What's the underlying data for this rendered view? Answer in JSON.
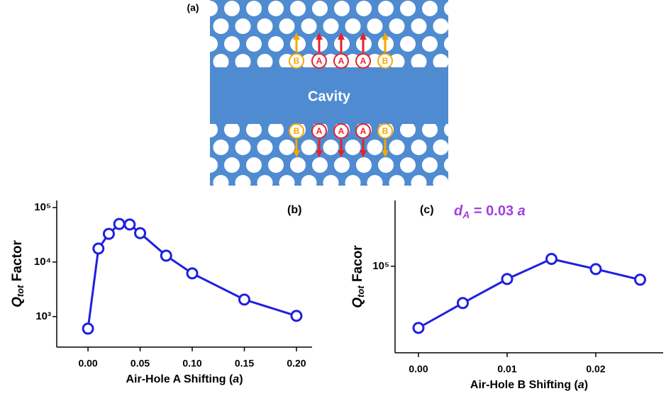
{
  "diagram": {
    "label": "(a)",
    "center": "Cavity",
    "top_row": [
      "B",
      "A",
      "A",
      "A",
      "B"
    ],
    "bottom_row": [
      "B",
      "A",
      "A",
      "A",
      "B"
    ]
  },
  "chart_data": [
    {
      "type": "line",
      "panel": "(b)",
      "xlabel": [
        "Air-Hole A Shifting (",
        "a",
        ")"
      ],
      "ylabel": [
        "Q",
        "tot",
        " Factor"
      ],
      "x": [
        0,
        0.01,
        0.02,
        0.03,
        0.04,
        0.05,
        0.075,
        0.1,
        0.15,
        0.2
      ],
      "series": [
        {
          "color": "#1f1fe0",
          "values": [
            600,
            17700,
            33000,
            50000,
            49000,
            34000,
            13100,
            6200,
            2050,
            1030
          ]
        }
      ],
      "xlim": [
        -0.03,
        0.215
      ],
      "ylim": [
        275,
        135000
      ],
      "log_y": true,
      "xticks": [
        {
          "value": 0,
          "label": "0.00"
        },
        {
          "value": 0.05,
          "label": "0.05"
        },
        {
          "value": 0.1,
          "label": "0.10"
        },
        {
          "value": 0.15,
          "label": "0.15"
        },
        {
          "value": 0.2,
          "label": "0.20"
        }
      ],
      "yticks": [
        {
          "value": 1000,
          "label": "10³"
        },
        {
          "value": 10000,
          "label": "10⁴"
        },
        {
          "value": 100000,
          "label": "10⁵"
        }
      ]
    },
    {
      "type": "line",
      "panel": "(c)",
      "xlabel": [
        "Air-Hole B Shifting (",
        "a",
        ")"
      ],
      "ylabel": [
        "Q",
        "tot",
        " Facor"
      ],
      "annotation": [
        "d",
        "A",
        " = 0.03 ",
        "a"
      ],
      "annotation_color": "#a040e0",
      "x": [
        0,
        0.005,
        0.01,
        0.015,
        0.02,
        0.025
      ],
      "series": [
        {
          "color": "#1f1fe0",
          "values": [
            44900,
            62000,
            84700,
            110000,
            96400,
            84000
          ]
        }
      ],
      "xlim": [
        -0.00264,
        0.0276
      ],
      "ylim": [
        32500,
        235000
      ],
      "log_y": true,
      "xticks": [
        {
          "value": 0,
          "label": "0.00"
        },
        {
          "value": 0.01,
          "label": "0.01"
        },
        {
          "value": 0.02,
          "label": "0.02"
        }
      ],
      "yticks": [
        {
          "value": 100000,
          "label": "10⁵"
        }
      ]
    }
  ]
}
